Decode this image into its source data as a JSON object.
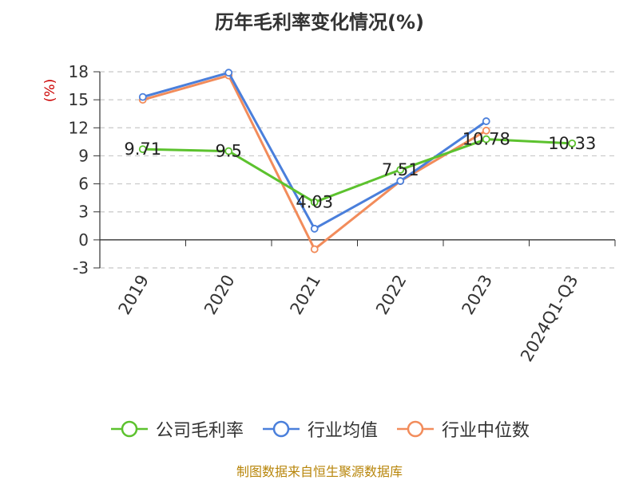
{
  "title": "历年毛利率变化情况(%)",
  "source": "制图数据来自恒生聚源数据库",
  "chart_data": {
    "type": "line",
    "title": "历年毛利率变化情况(%)",
    "ylabel": "(%)",
    "xlabel": "",
    "categories": [
      "2019",
      "2020",
      "2021",
      "2022",
      "2023",
      "2024Q1-Q3"
    ],
    "ylim": [
      -3,
      18
    ],
    "yticks": [
      -3,
      0,
      3,
      6,
      9,
      12,
      15,
      18
    ],
    "grid": true,
    "legend_position": "bottom",
    "series": [
      {
        "name": "公司毛利率",
        "color": "#5cc22e",
        "labeled": true,
        "values": [
          9.71,
          9.5,
          4.03,
          7.51,
          10.78,
          10.33
        ]
      },
      {
        "name": "行业均值",
        "color": "#4a7fdb",
        "labeled": false,
        "values": [
          15.3,
          17.9,
          1.2,
          6.3,
          12.7,
          null
        ]
      },
      {
        "name": "行业中位数",
        "color": "#f28c5b",
        "labeled": false,
        "values": [
          15.0,
          17.6,
          -1.0,
          6.3,
          11.7,
          null
        ]
      }
    ]
  }
}
